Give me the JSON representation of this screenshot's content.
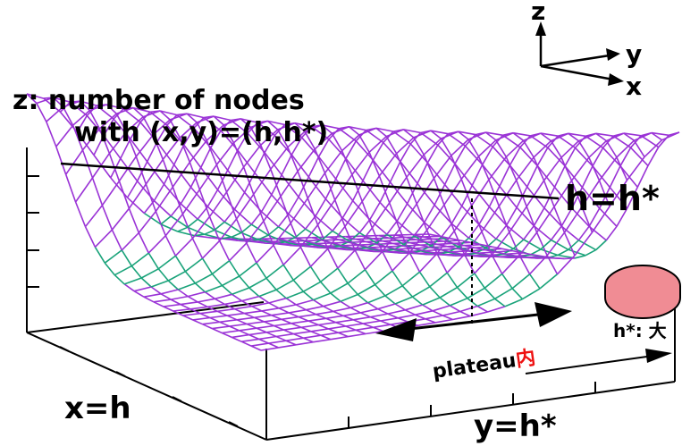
{
  "axes_indicator": {
    "z": "z",
    "y": "y",
    "x": "x"
  },
  "zlabel": {
    "line1": "z: number of nodes",
    "line2": "with (x,y)=(h,h*)"
  },
  "labels": {
    "ridge": "h=h*",
    "plateau_prefix": "plateau",
    "plateau_suffix": "内",
    "hstar_prefix": "h*: ",
    "hstar_suffix": "大",
    "xaxis": "x=h",
    "yaxis": "y=h*"
  },
  "colors": {
    "mesh_top": "#9a33d6",
    "mesh_bottom": "#1aa37a",
    "ellipse_fill": "#f08c94",
    "red_text": "#ee1111",
    "black": "#000000"
  }
}
